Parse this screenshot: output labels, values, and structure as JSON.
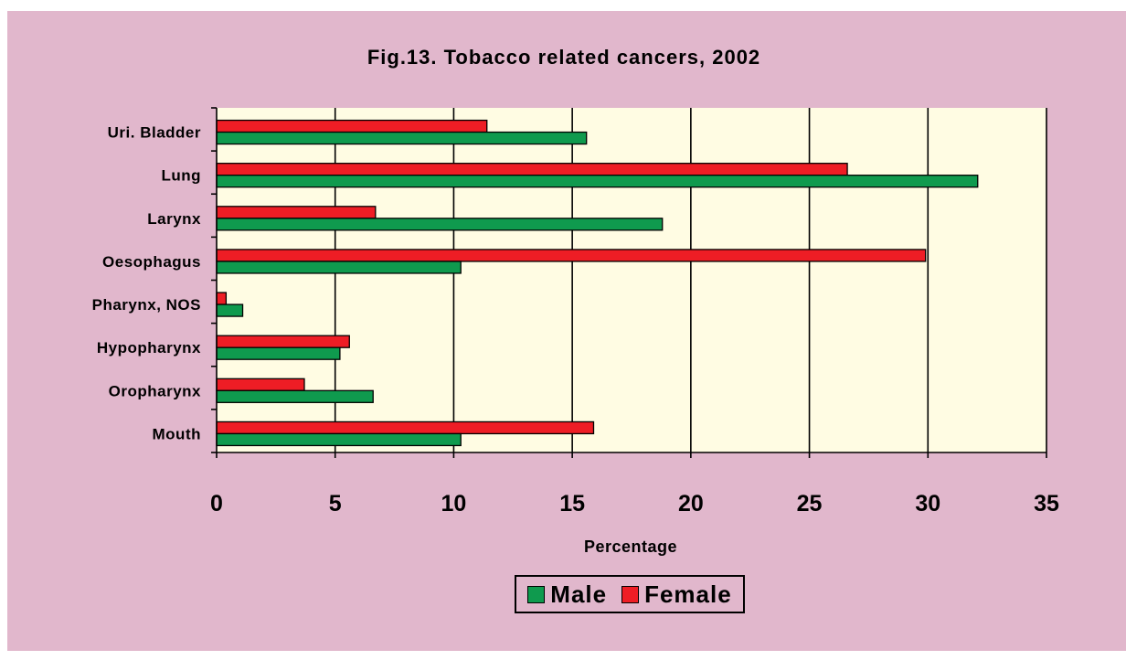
{
  "colors": {
    "panel_background": "#e1b7cc",
    "plot_background": "#fffce3",
    "male": "#0f9a4e",
    "female": "#ee1d25",
    "gridline": "#000000"
  },
  "chart_data": {
    "type": "bar",
    "orientation": "horizontal",
    "title": "Fig.13. Tobacco related cancers, 2002",
    "xlabel": "Percentage",
    "ylabel": "",
    "xlim": [
      0,
      35
    ],
    "x_ticks": [
      0,
      5,
      10,
      15,
      20,
      25,
      30,
      35
    ],
    "grid": "vertical major gridlines",
    "legend_position": "bottom-center",
    "categories": [
      "Uri. Bladder",
      "Lung",
      "Larynx",
      "Oesophagus",
      "Pharynx, NOS",
      "Hypopharynx",
      "Oropharynx",
      "Mouth"
    ],
    "series": [
      {
        "name": "Male",
        "color": "#0f9a4e",
        "values": [
          15.6,
          32.1,
          18.8,
          10.3,
          1.1,
          5.2,
          6.6,
          10.3
        ]
      },
      {
        "name": "Female",
        "color": "#ee1d25",
        "values": [
          11.4,
          26.6,
          6.7,
          29.9,
          0.4,
          5.6,
          3.7,
          15.9
        ]
      }
    ]
  }
}
